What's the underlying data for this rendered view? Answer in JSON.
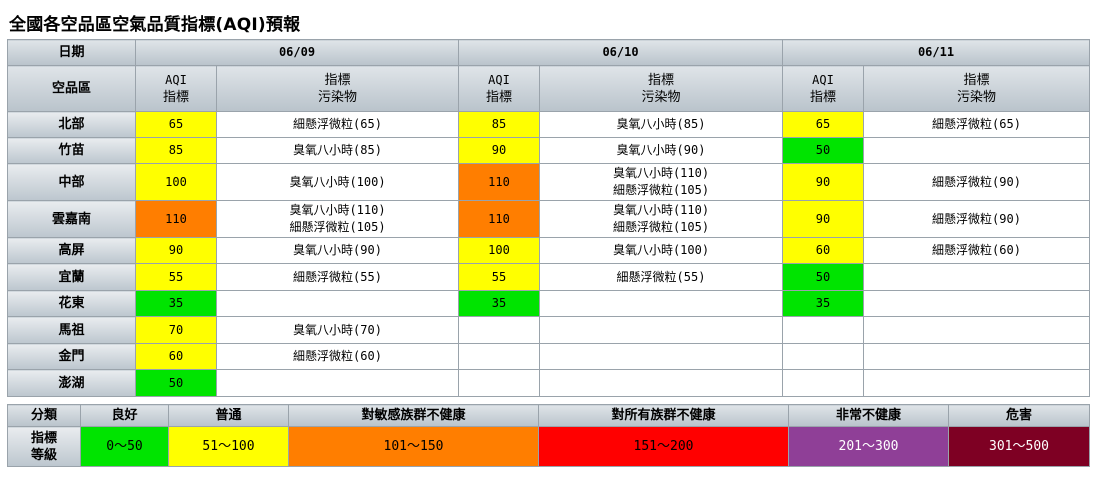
{
  "title": "全國各空品區空氣品質指標(AQI)預報",
  "header": {
    "date_label": "日期",
    "region_label": "空品區",
    "dates": [
      "06/09",
      "06/10",
      "06/11"
    ],
    "aqi_label_1": "AQI",
    "aqi_label_2": "指標",
    "pollutant_label_1": "指標",
    "pollutant_label_2": "污染物"
  },
  "colors": {
    "good": "#00e400",
    "moderate": "#ffff00",
    "usg": "#ff7e00",
    "unhealthy": "#ff0000",
    "very_unhealthy": "#8f3f97",
    "hazardous": "#7e0023"
  },
  "rows": [
    {
      "region": "北部",
      "days": [
        {
          "aqi": "65",
          "level": "moderate",
          "pollutant": "細懸浮微粒(65)"
        },
        {
          "aqi": "85",
          "level": "moderate",
          "pollutant": "臭氧八小時(85)"
        },
        {
          "aqi": "65",
          "level": "moderate",
          "pollutant": "細懸浮微粒(65)"
        }
      ]
    },
    {
      "region": "竹苗",
      "days": [
        {
          "aqi": "85",
          "level": "moderate",
          "pollutant": "臭氧八小時(85)"
        },
        {
          "aqi": "90",
          "level": "moderate",
          "pollutant": "臭氧八小時(90)"
        },
        {
          "aqi": "50",
          "level": "good",
          "pollutant": ""
        }
      ]
    },
    {
      "region": "中部",
      "days": [
        {
          "aqi": "100",
          "level": "moderate",
          "pollutant": "臭氧八小時(100)"
        },
        {
          "aqi": "110",
          "level": "usg",
          "pollutant": "臭氧八小時(110)\n細懸浮微粒(105)"
        },
        {
          "aqi": "90",
          "level": "moderate",
          "pollutant": "細懸浮微粒(90)"
        }
      ]
    },
    {
      "region": "雲嘉南",
      "days": [
        {
          "aqi": "110",
          "level": "usg",
          "pollutant": "臭氧八小時(110)\n細懸浮微粒(105)"
        },
        {
          "aqi": "110",
          "level": "usg",
          "pollutant": "臭氧八小時(110)\n細懸浮微粒(105)"
        },
        {
          "aqi": "90",
          "level": "moderate",
          "pollutant": "細懸浮微粒(90)"
        }
      ]
    },
    {
      "region": "高屏",
      "days": [
        {
          "aqi": "90",
          "level": "moderate",
          "pollutant": "臭氧八小時(90)"
        },
        {
          "aqi": "100",
          "level": "moderate",
          "pollutant": "臭氧八小時(100)"
        },
        {
          "aqi": "60",
          "level": "moderate",
          "pollutant": "細懸浮微粒(60)"
        }
      ]
    },
    {
      "region": "宜蘭",
      "days": [
        {
          "aqi": "55",
          "level": "moderate",
          "pollutant": "細懸浮微粒(55)"
        },
        {
          "aqi": "55",
          "level": "moderate",
          "pollutant": "細懸浮微粒(55)"
        },
        {
          "aqi": "50",
          "level": "good",
          "pollutant": ""
        }
      ]
    },
    {
      "region": "花東",
      "days": [
        {
          "aqi": "35",
          "level": "good",
          "pollutant": ""
        },
        {
          "aqi": "35",
          "level": "good",
          "pollutant": ""
        },
        {
          "aqi": "35",
          "level": "good",
          "pollutant": ""
        }
      ]
    },
    {
      "region": "馬祖",
      "days": [
        {
          "aqi": "70",
          "level": "moderate",
          "pollutant": "臭氧八小時(70)"
        },
        {
          "aqi": "",
          "level": "",
          "pollutant": ""
        },
        {
          "aqi": "",
          "level": "",
          "pollutant": ""
        }
      ]
    },
    {
      "region": "金門",
      "days": [
        {
          "aqi": "60",
          "level": "moderate",
          "pollutant": "細懸浮微粒(60)"
        },
        {
          "aqi": "",
          "level": "",
          "pollutant": ""
        },
        {
          "aqi": "",
          "level": "",
          "pollutant": ""
        }
      ]
    },
    {
      "region": "澎湖",
      "days": [
        {
          "aqi": "50",
          "level": "good",
          "pollutant": ""
        },
        {
          "aqi": "",
          "level": "",
          "pollutant": ""
        },
        {
          "aqi": "",
          "level": "",
          "pollutant": ""
        }
      ]
    }
  ],
  "legend": {
    "category_label": "分類",
    "index_label_1": "指標",
    "index_label_2": "等級",
    "levels": [
      {
        "name": "良好",
        "range": "0～50",
        "color": "#00e400",
        "text_color": "#000000"
      },
      {
        "name": "普通",
        "range": "51～100",
        "color": "#ffff00",
        "text_color": "#000000"
      },
      {
        "name": "對敏感族群不健康",
        "range": "101～150",
        "color": "#ff7e00",
        "text_color": "#000000"
      },
      {
        "name": "對所有族群不健康",
        "range": "151～200",
        "color": "#ff0000",
        "text_color": "#000000"
      },
      {
        "name": "非常不健康",
        "range": "201～300",
        "color": "#8f3f97",
        "text_color": "#ffffff"
      },
      {
        "name": "危害",
        "range": "301～500",
        "color": "#7e0023",
        "text_color": "#ffffff"
      }
    ]
  }
}
